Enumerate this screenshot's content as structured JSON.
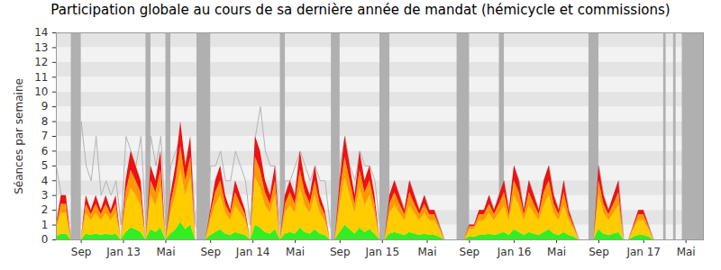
{
  "chart_data": {
    "type": "area",
    "title": "Participation globale au cours de sa dernière année de mandat (hémicycle et commissions)",
    "ylabel": "Séances par semaine",
    "stacked": true,
    "grid": true,
    "xlim": [
      0,
      260
    ],
    "xticks": [
      {
        "value": 10,
        "label": "Sep"
      },
      {
        "value": 27,
        "label": "Jan 13"
      },
      {
        "value": 44,
        "label": "Mai"
      },
      {
        "value": 62,
        "label": "Sep"
      },
      {
        "value": 79,
        "label": "Jan 14"
      },
      {
        "value": 96,
        "label": "Mai"
      },
      {
        "value": 114,
        "label": "Sep"
      },
      {
        "value": 131,
        "label": "Jan 15"
      },
      {
        "value": 149,
        "label": "Mai"
      },
      {
        "value": 166,
        "label": "Sep"
      },
      {
        "value": 184,
        "label": "Jan 16"
      },
      {
        "value": 201,
        "label": "Mai"
      },
      {
        "value": 218,
        "label": "Sep"
      },
      {
        "value": 236,
        "label": "Jan 17"
      },
      {
        "value": 253,
        "label": "Mai"
      }
    ],
    "ylim": [
      0,
      14
    ],
    "yticks": [
      0,
      1,
      2,
      3,
      4,
      5,
      6,
      7,
      8,
      9,
      10,
      11,
      12,
      13,
      14
    ],
    "bands": [
      [
        6,
        10
      ],
      [
        36,
        38
      ],
      [
        44,
        46
      ],
      [
        56.5,
        62
      ],
      [
        90,
        92
      ],
      [
        110.5,
        114
      ],
      [
        130,
        134
      ],
      [
        161,
        166
      ],
      [
        178,
        180
      ],
      [
        214,
        218
      ],
      [
        244,
        245
      ],
      [
        248,
        249
      ],
      [
        251.5,
        260
      ]
    ],
    "x": [
      0,
      2,
      4,
      6,
      8,
      10,
      12,
      14,
      16,
      18,
      20,
      22,
      24,
      26,
      28,
      30,
      32,
      34,
      36,
      38,
      40,
      42,
      44,
      46,
      48,
      50,
      52,
      54,
      56,
      58,
      60,
      62,
      64,
      66,
      68,
      70,
      72,
      74,
      76,
      78,
      80,
      82,
      84,
      86,
      88,
      90,
      92,
      94,
      96,
      98,
      100,
      102,
      104,
      106,
      108,
      110,
      112,
      114,
      116,
      118,
      120,
      122,
      124,
      126,
      128,
      130,
      132,
      134,
      136,
      138,
      140,
      142,
      144,
      146,
      148,
      150,
      152,
      154,
      156,
      158,
      160,
      162,
      164,
      166,
      168,
      170,
      172,
      174,
      176,
      178,
      180,
      182,
      184,
      186,
      188,
      190,
      192,
      194,
      196,
      198,
      200,
      202,
      204,
      206,
      208,
      210,
      212,
      214,
      216,
      218,
      220,
      222,
      224,
      226,
      228,
      230,
      232,
      234,
      236,
      238,
      240,
      242,
      244,
      246,
      248,
      250,
      252,
      254,
      256,
      258
    ],
    "series": [
      {
        "type": "line",
        "color": "#b4b4b4",
        "values": [
          5,
          3,
          2,
          0,
          0,
          8,
          5,
          4,
          7,
          3,
          4,
          3,
          4,
          1,
          7,
          6,
          5,
          7,
          1,
          7,
          5,
          7,
          1,
          5,
          6,
          7,
          5,
          6,
          1,
          0,
          0,
          5,
          5,
          6,
          4,
          4,
          6,
          5,
          4,
          1,
          7,
          9,
          6,
          5,
          5,
          1,
          4,
          4,
          5,
          6,
          5,
          4,
          5,
          4,
          4,
          1,
          0,
          5,
          7,
          5,
          4,
          6,
          5,
          5,
          4,
          1,
          0,
          3,
          4,
          3,
          2,
          4,
          3,
          2,
          3,
          2,
          2,
          1,
          0,
          0,
          0,
          0,
          0,
          1,
          1,
          2,
          2,
          3,
          2,
          3,
          4,
          2,
          5,
          4,
          2,
          4,
          3,
          2,
          4,
          5,
          3,
          2,
          4,
          2,
          1,
          0,
          0,
          0,
          0,
          5,
          3,
          2,
          3,
          4,
          0,
          0,
          1,
          2,
          2,
          1,
          0,
          0,
          0,
          0,
          0,
          0,
          0,
          0,
          0,
          0
        ]
      },
      {
        "type": "area",
        "color": "#33ee22",
        "values": [
          0.2,
          0.4,
          0.4,
          0,
          0,
          0,
          0.4,
          0.3,
          0.4,
          0.3,
          0.4,
          0.3,
          0.4,
          0,
          0.5,
          0.8,
          0.7,
          0.5,
          0,
          0.7,
          0.5,
          0.8,
          0,
          0.4,
          0.7,
          1.2,
          0.7,
          1,
          0,
          0,
          0,
          0.3,
          0.5,
          0.7,
          0.4,
          0.3,
          0.5,
          0.4,
          0.3,
          0,
          1,
          0.8,
          0.5,
          0.4,
          0.7,
          0,
          0.4,
          0.5,
          0.4,
          0.8,
          0.5,
          0.4,
          0.7,
          0.4,
          0.3,
          0,
          0,
          0.5,
          1,
          0.7,
          0.4,
          0.8,
          0.5,
          0.7,
          0.4,
          0,
          0,
          0.4,
          0.5,
          0.4,
          0.3,
          0.5,
          0.4,
          0.3,
          0.4,
          0.3,
          0.3,
          0.2,
          0,
          0,
          0,
          0,
          0,
          0.2,
          0.2,
          0.3,
          0.3,
          0.4,
          0.3,
          0.4,
          0.5,
          0.3,
          0.7,
          0.5,
          0.3,
          0.5,
          0.4,
          0.3,
          0.5,
          0.7,
          0.4,
          0.3,
          0.5,
          0.3,
          0.2,
          0,
          0,
          0,
          0,
          0.7,
          0.4,
          0.3,
          0.4,
          0.5,
          0,
          0,
          0.2,
          0.3,
          0.3,
          0.2,
          0,
          0,
          0,
          0,
          0,
          0,
          0,
          0,
          0,
          0
        ]
      },
      {
        "type": "area",
        "color": "#ffcc00",
        "values": [
          0.5,
          1.4,
          1.4,
          0,
          0,
          0,
          1.4,
          1,
          1.4,
          1,
          1.4,
          1,
          1.4,
          0,
          1.8,
          2.7,
          2.3,
          1.8,
          0,
          2.3,
          1.8,
          2.7,
          0,
          1.4,
          2.3,
          3.5,
          2.3,
          3.2,
          0,
          0,
          0,
          1,
          1.8,
          2.3,
          1.4,
          1,
          1.8,
          1.4,
          1,
          0,
          3.2,
          2.7,
          1.8,
          1.4,
          2.3,
          0,
          1.4,
          1.8,
          1.4,
          2.7,
          1.8,
          1.4,
          2.3,
          1.4,
          1,
          0,
          0,
          1.8,
          3.2,
          2.3,
          1.4,
          2.7,
          1.8,
          2.3,
          1.4,
          0,
          0,
          1.4,
          1.8,
          1.4,
          1,
          1.8,
          1.4,
          1,
          1.4,
          1,
          1,
          0.5,
          0,
          0,
          0,
          0,
          0,
          0.5,
          0.5,
          1,
          1,
          1.4,
          1,
          1.4,
          1.8,
          1,
          2.3,
          1.8,
          1,
          1.8,
          1.4,
          1,
          1.8,
          2.3,
          1.4,
          1,
          1.8,
          1,
          0.5,
          0,
          0,
          0,
          0,
          2.3,
          1.4,
          1,
          1.4,
          1.8,
          0,
          0,
          0.5,
          1,
          1,
          0.5,
          0,
          0,
          0,
          0,
          0,
          0,
          0,
          0,
          0,
          0
        ]
      },
      {
        "type": "area",
        "color": "#ff9900",
        "values": [
          0.2,
          0.6,
          0.6,
          0,
          0,
          0,
          0.6,
          0.4,
          0.6,
          0.4,
          0.6,
          0.4,
          0.6,
          0,
          0.9,
          1.2,
          1,
          0.9,
          0,
          1,
          0.9,
          1.2,
          0,
          0.6,
          1,
          1.6,
          1,
          1.4,
          0,
          0,
          0,
          0.4,
          0.9,
          1,
          0.6,
          0.4,
          0.9,
          0.6,
          0.4,
          0,
          1.4,
          1.2,
          0.9,
          0.6,
          1,
          0,
          0.6,
          0.9,
          0.6,
          1.2,
          0.9,
          0.6,
          1,
          0.6,
          0.4,
          0,
          0,
          0.9,
          1.4,
          1,
          0.6,
          1.2,
          0.9,
          1,
          0.6,
          0,
          0,
          0.6,
          0.9,
          0.6,
          0.4,
          0.9,
          0.6,
          0.4,
          0.6,
          0.4,
          0.4,
          0.2,
          0,
          0,
          0,
          0,
          0,
          0.2,
          0.2,
          0.4,
          0.4,
          0.6,
          0.4,
          0.6,
          0.9,
          0.4,
          1,
          0.9,
          0.4,
          0.9,
          0.6,
          0.4,
          0.9,
          1,
          0.6,
          0.4,
          0.9,
          0.4,
          0.2,
          0,
          0,
          0,
          0,
          1,
          0.6,
          0.4,
          0.6,
          0.9,
          0,
          0,
          0.2,
          0.4,
          0.4,
          0.2,
          0,
          0,
          0,
          0,
          0,
          0,
          0,
          0,
          0,
          0
        ]
      },
      {
        "type": "area",
        "color": "#ee1111",
        "values": [
          0.1,
          0.6,
          0.6,
          0,
          0,
          0,
          0.6,
          0.3,
          0.6,
          0.3,
          0.6,
          0.3,
          0.6,
          0,
          0.8,
          1.3,
          1,
          0.8,
          0,
          1,
          0.8,
          1.3,
          0,
          0.6,
          1,
          1.7,
          1,
          1.4,
          0,
          0,
          0,
          0.3,
          0.8,
          1,
          0.6,
          0.3,
          0.8,
          0.6,
          0.3,
          0,
          1.4,
          1.3,
          0.8,
          0.6,
          1,
          0,
          0.6,
          0.8,
          0.6,
          1.3,
          0.8,
          0.6,
          1,
          0.6,
          0.3,
          0,
          0,
          0.8,
          1.4,
          1,
          0.6,
          1.3,
          0.8,
          1,
          0.6,
          0,
          0,
          0.6,
          0.8,
          0.6,
          0.3,
          0.8,
          0.6,
          0.3,
          0.6,
          0.3,
          0.3,
          0.1,
          0,
          0,
          0,
          0,
          0,
          0.1,
          0.1,
          0.3,
          0.3,
          0.6,
          0.3,
          0.6,
          0.8,
          0.3,
          1,
          0.8,
          0.3,
          0.8,
          0.6,
          0.3,
          0.8,
          1,
          0.6,
          0.3,
          0.8,
          0.3,
          0.1,
          0,
          0,
          0,
          0,
          1,
          0.6,
          0.3,
          0.6,
          0.8,
          0,
          0,
          0.1,
          0.3,
          0.3,
          0.1,
          0,
          0,
          0,
          0,
          0,
          0,
          0,
          0,
          0,
          0
        ]
      }
    ]
  }
}
